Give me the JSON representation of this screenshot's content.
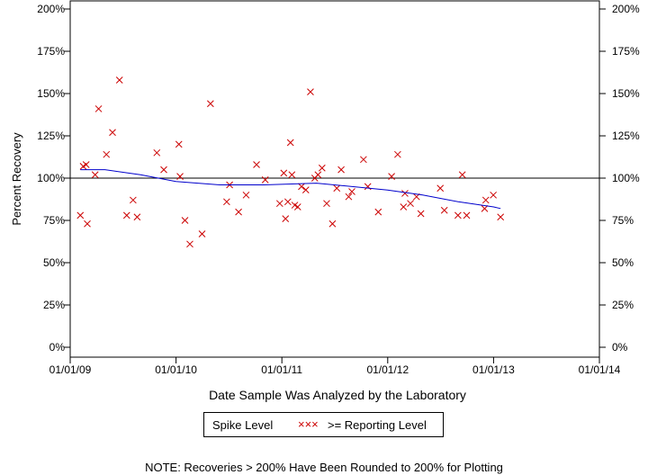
{
  "chart_data": {
    "type": "scatter",
    "xlabel": "Date Sample Was Analyzed by the Laboratory",
    "ylabel": "Percent Recovery",
    "x_tick_labels": [
      "01/01/09",
      "01/01/10",
      "01/01/11",
      "01/01/12",
      "01/01/13",
      "01/01/14"
    ],
    "y_tick_labels": [
      "0%",
      "25%",
      "50%",
      "75%",
      "100%",
      "125%",
      "150%",
      "175%",
      "200%"
    ],
    "xlim": [
      "2009-01-01",
      "2014-01-01"
    ],
    "ylim": [
      0,
      200
    ],
    "reference_line": 100,
    "legend": {
      "title": "Spike Level",
      "marker_text": "XXX",
      "label": ">= Reporting Level",
      "placement": "bottom-center"
    },
    "marker_color": "#cc0000",
    "trend_color": "#0000cc",
    "series": [
      {
        "name": ">= Reporting Level",
        "points": [
          [
            "2009-02-05",
            78
          ],
          [
            "2009-02-15",
            107
          ],
          [
            "2009-02-25",
            108
          ],
          [
            "2009-03-01",
            73
          ],
          [
            "2009-03-28",
            102
          ],
          [
            "2009-04-09",
            141
          ],
          [
            "2009-05-06",
            114
          ],
          [
            "2009-05-27",
            127
          ],
          [
            "2009-06-20",
            158
          ],
          [
            "2009-07-15",
            78
          ],
          [
            "2009-08-06",
            87
          ],
          [
            "2009-08-20",
            77
          ],
          [
            "2009-10-27",
            115
          ],
          [
            "2009-11-20",
            105
          ],
          [
            "2010-01-11",
            120
          ],
          [
            "2010-01-15",
            101
          ],
          [
            "2010-02-01",
            75
          ],
          [
            "2010-02-18",
            61
          ],
          [
            "2010-04-01",
            67
          ],
          [
            "2010-04-30",
            144
          ],
          [
            "2010-06-25",
            86
          ],
          [
            "2010-07-05",
            96
          ],
          [
            "2010-08-05",
            80
          ],
          [
            "2010-08-31",
            90
          ],
          [
            "2010-10-06",
            108
          ],
          [
            "2010-11-05",
            99
          ],
          [
            "2010-12-25",
            85
          ],
          [
            "2011-01-08",
            103
          ],
          [
            "2011-01-14",
            76
          ],
          [
            "2011-01-22",
            86
          ],
          [
            "2011-01-31",
            121
          ],
          [
            "2011-02-05",
            102
          ],
          [
            "2011-02-15",
            84
          ],
          [
            "2011-02-25",
            83
          ],
          [
            "2011-03-10",
            95
          ],
          [
            "2011-03-25",
            93
          ],
          [
            "2011-04-10",
            151
          ],
          [
            "2011-04-25",
            100
          ],
          [
            "2011-05-06",
            102
          ],
          [
            "2011-05-20",
            106
          ],
          [
            "2011-06-05",
            85
          ],
          [
            "2011-06-25",
            73
          ],
          [
            "2011-07-10",
            94
          ],
          [
            "2011-07-25",
            105
          ],
          [
            "2011-08-20",
            89
          ],
          [
            "2011-08-31",
            92
          ],
          [
            "2011-10-10",
            111
          ],
          [
            "2011-10-25",
            95
          ],
          [
            "2011-11-30",
            80
          ],
          [
            "2012-01-15",
            101
          ],
          [
            "2012-02-05",
            114
          ],
          [
            "2012-02-25",
            83
          ],
          [
            "2012-03-01",
            91
          ],
          [
            "2012-03-20",
            85
          ],
          [
            "2012-04-10",
            89
          ],
          [
            "2012-04-25",
            79
          ],
          [
            "2012-07-01",
            94
          ],
          [
            "2012-07-15",
            81
          ],
          [
            "2012-08-31",
            78
          ],
          [
            "2012-09-15",
            102
          ],
          [
            "2012-09-30",
            78
          ],
          [
            "2012-12-01",
            82
          ],
          [
            "2012-12-05",
            87
          ],
          [
            "2012-12-31",
            90
          ],
          [
            "2013-01-25",
            77
          ]
        ]
      }
    ],
    "trend": {
      "points": [
        [
          "2009-02-05",
          105
        ],
        [
          "2009-05-01",
          105
        ],
        [
          "2009-09-01",
          102
        ],
        [
          "2010-01-01",
          98
        ],
        [
          "2010-06-01",
          96
        ],
        [
          "2010-11-01",
          96
        ],
        [
          "2011-05-01",
          97
        ],
        [
          "2011-09-01",
          95
        ],
        [
          "2012-01-01",
          93
        ],
        [
          "2012-05-01",
          90
        ],
        [
          "2012-09-01",
          86
        ],
        [
          "2013-01-01",
          83
        ],
        [
          "2013-01-25",
          82
        ]
      ]
    }
  },
  "note": "NOTE: Recoveries > 200% Have Been Rounded to 200% for Plotting"
}
